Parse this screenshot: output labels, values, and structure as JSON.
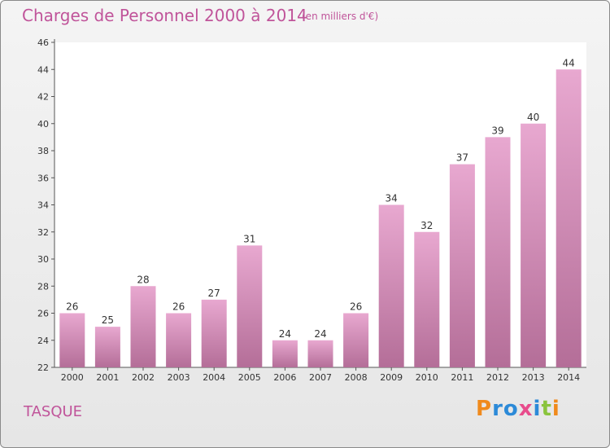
{
  "header": {
    "title": "Charges de Personnel 2000 à 2014",
    "subtitle": "(en milliers d'€)"
  },
  "footer": {
    "commune": "TASQUE",
    "logo_text": "Proxiti"
  },
  "colors": {
    "bar_light": "#e8a8d0",
    "bar_dark": "#b46e98",
    "title": "#c0549a",
    "logo": [
      "#f08a1c",
      "#2c8ad8",
      "#2c8ad8",
      "#e84c8c",
      "#2c8ad8",
      "#8ac43c",
      "#f08a1c"
    ]
  },
  "chart_data": {
    "type": "bar",
    "title": "Charges de Personnel 2000 à 2014",
    "subtitle": "(en milliers d'€)",
    "categories": [
      "2000",
      "2001",
      "2002",
      "2003",
      "2004",
      "2005",
      "2006",
      "2007",
      "2008",
      "2009",
      "2010",
      "2011",
      "2012",
      "2013",
      "2014"
    ],
    "values": [
      26,
      25,
      28,
      26,
      27,
      31,
      24,
      24,
      26,
      34,
      32,
      37,
      39,
      40,
      44
    ],
    "ylim": [
      22,
      46
    ],
    "yticks": [
      22,
      24,
      26,
      28,
      30,
      32,
      34,
      36,
      38,
      40,
      42,
      44,
      46
    ],
    "grid": false,
    "show_data_labels": true
  }
}
